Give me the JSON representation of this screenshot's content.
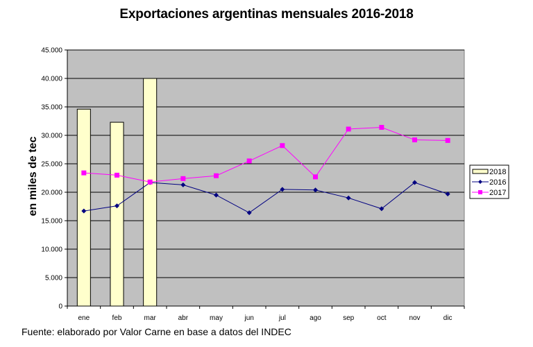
{
  "chart_data": {
    "type": "bar",
    "title": "Exportaciones argentinas mensuales 2016-2018",
    "xlabel": "",
    "ylabel": "en miles de tec",
    "ylim": [
      0,
      45000
    ],
    "yticks": [
      0,
      5000,
      10000,
      15000,
      20000,
      25000,
      30000,
      35000,
      40000,
      45000
    ],
    "ytick_labels": [
      "0",
      "5.000",
      "10.000",
      "15.000",
      "20.000",
      "25.000",
      "30.000",
      "35.000",
      "40.000",
      "45.000"
    ],
    "categories": [
      "ene",
      "feb",
      "mar",
      "abr",
      "may",
      "jun",
      "jul",
      "ago",
      "sep",
      "oct",
      "nov",
      "dic"
    ],
    "grid": true,
    "legend_position": "right",
    "series": [
      {
        "name": "2018",
        "type": "bar",
        "color": "#ffffcc",
        "values": [
          34600,
          32300,
          40000,
          null,
          null,
          null,
          null,
          null,
          null,
          null,
          null,
          null
        ]
      },
      {
        "name": "2016",
        "type": "line",
        "marker": "diamond",
        "color": "#000080",
        "values": [
          16700,
          17600,
          21700,
          21300,
          19500,
          16400,
          20500,
          20400,
          19000,
          17100,
          21700,
          19700
        ]
      },
      {
        "name": "2017",
        "type": "line",
        "marker": "square",
        "color": "#ff00ff",
        "values": [
          23400,
          23000,
          21800,
          22400,
          22900,
          25500,
          28200,
          22700,
          31100,
          31400,
          29200,
          29100
        ]
      }
    ]
  },
  "footer": {
    "source": "Fuente: elaborado por  Valor Carne en base a datos del INDEC"
  },
  "colors": {
    "plot_background": "#c0c0c0",
    "gridline": "#000000"
  }
}
